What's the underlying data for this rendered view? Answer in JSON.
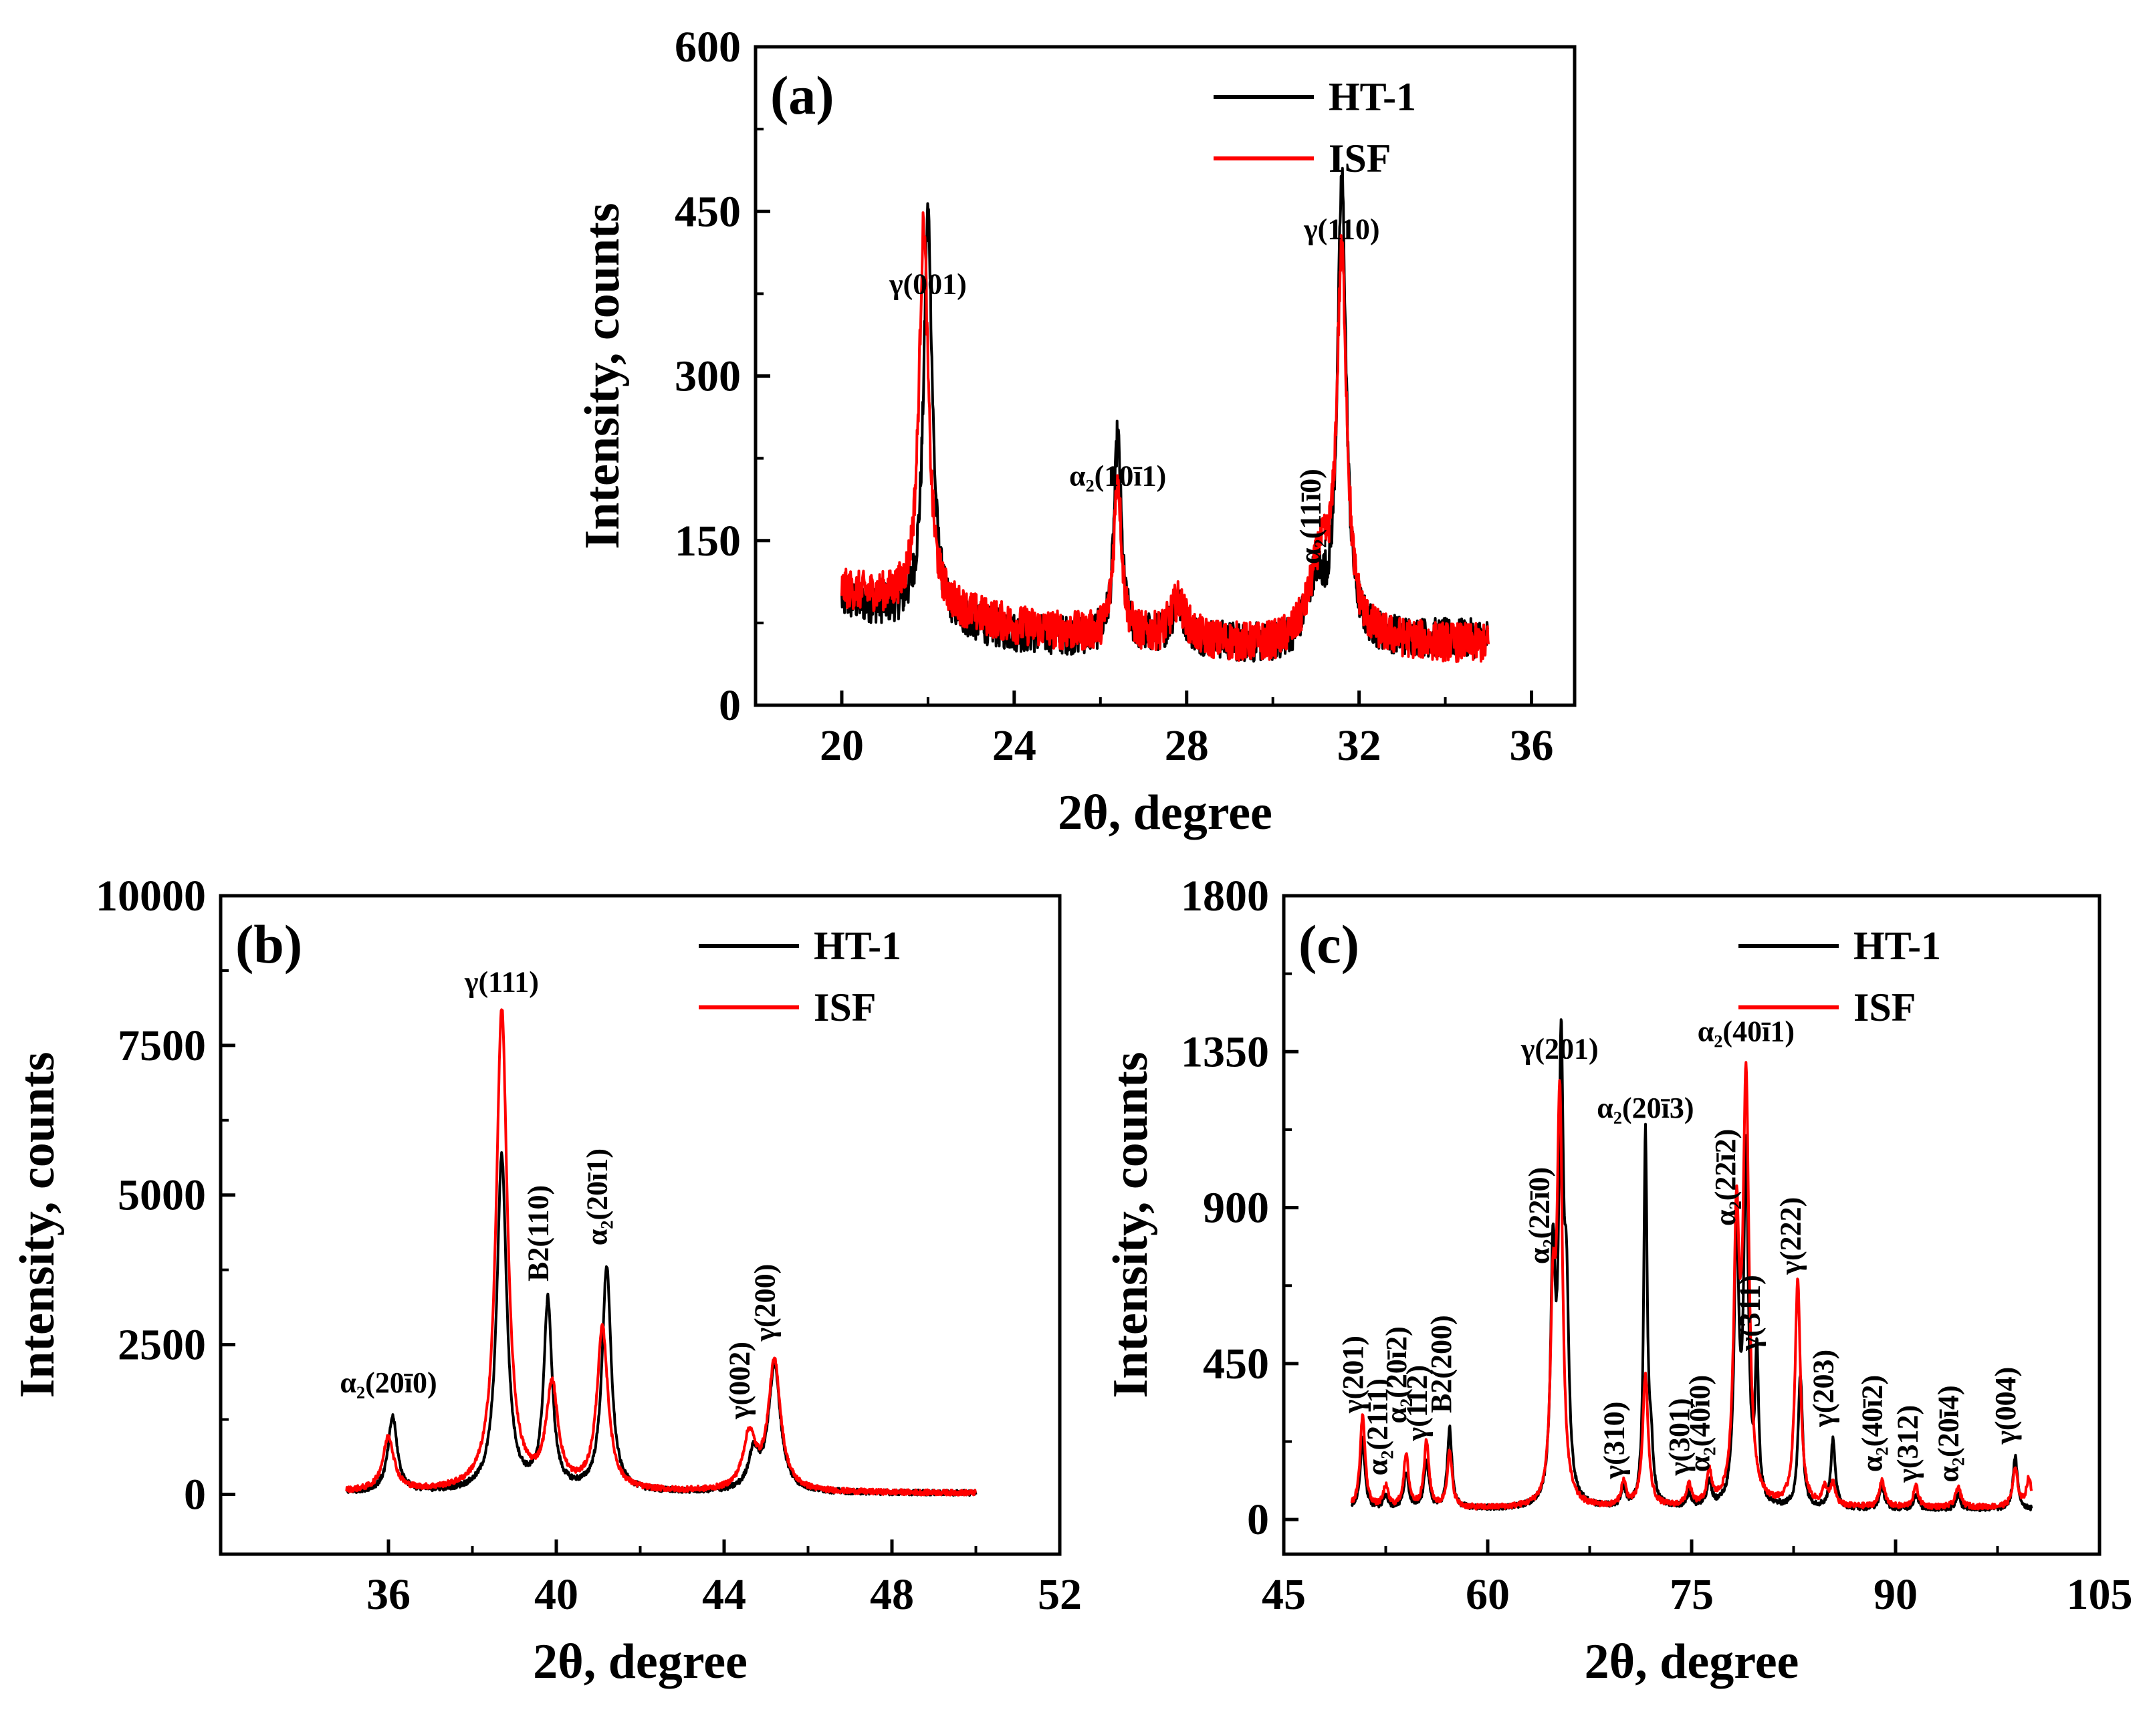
{
  "colors": {
    "HT-1": "#000000",
    "ISF": "#ff0000"
  },
  "chart_data": [
    {
      "type": "line",
      "panel_label": "(a)",
      "xlabel": "2θ, degree",
      "ylabel": "Intensity, counts",
      "xlim": [
        18,
        37
      ],
      "ylim": [
        0,
        600
      ],
      "xticks": [
        20,
        24,
        28,
        32,
        36
      ],
      "yticks": [
        0,
        150,
        300,
        450,
        600
      ],
      "x_range": [
        20,
        35
      ],
      "grid": false,
      "legend_position": "top-right",
      "legend": [
        "HT-1",
        "ISF"
      ],
      "series": [
        {
          "name": "HT-1",
          "color": "#000000",
          "baseline": [
            [
              20,
              95
            ],
            [
              22,
              80
            ],
            [
              24,
              65
            ],
            [
              26,
              60
            ],
            [
              28,
              60
            ],
            [
              30,
              52
            ],
            [
              32,
              60
            ],
            [
              35,
              60
            ]
          ],
          "peaks": [
            [
              22.0,
              370,
              0.12
            ],
            [
              26.4,
              185,
              0.1
            ],
            [
              27.8,
              30,
              0.2
            ],
            [
              31.0,
              55,
              0.25
            ],
            [
              31.6,
              415,
              0.12
            ]
          ]
        },
        {
          "name": "ISF",
          "color": "#ff0000",
          "baseline": [
            [
              20,
              105
            ],
            [
              22,
              90
            ],
            [
              24,
              72
            ],
            [
              26,
              62
            ],
            [
              28,
              58
            ],
            [
              30,
              52
            ],
            [
              32,
              58
            ],
            [
              35,
              55
            ]
          ],
          "peaks": [
            [
              21.9,
              345,
              0.13
            ],
            [
              26.4,
              145,
              0.11
            ],
            [
              27.8,
              35,
              0.22
            ],
            [
              31.1,
              70,
              0.3
            ],
            [
              31.6,
              340,
              0.14
            ]
          ]
        }
      ],
      "annotations": [
        {
          "text": "γ(001)",
          "x": 22.0,
          "y": 375
        },
        {
          "text": "α₂(10ī1)",
          "x": 26.4,
          "y": 200
        },
        {
          "text": "γ(110)",
          "x": 31.6,
          "y": 425
        },
        {
          "text": "α₂(11ī0)",
          "x": 31.1,
          "y": 120,
          "rotate": true
        }
      ]
    },
    {
      "type": "line",
      "panel_label": "(b)",
      "xlabel": "2θ, degree",
      "ylabel": "Intensity, counts",
      "xlim": [
        32,
        52
      ],
      "ylim": [
        -1000,
        10000
      ],
      "xticks": [
        36,
        40,
        44,
        48,
        52
      ],
      "yticks": [
        0,
        2500,
        5000,
        7500,
        10000
      ],
      "x_range": [
        35,
        50
      ],
      "grid": false,
      "legend_position": "top-right",
      "legend": [
        "HT-1",
        "ISF"
      ],
      "series": [
        {
          "name": "HT-1",
          "color": "#000000",
          "baseline": [
            [
              35,
              30
            ],
            [
              50,
              20
            ]
          ],
          "peaks": [
            [
              36.1,
              1250,
              0.13
            ],
            [
              38.7,
              5600,
              0.14
            ],
            [
              39.8,
              3150,
              0.12
            ],
            [
              41.2,
              3750,
              0.13
            ],
            [
              44.7,
              600,
              0.15
            ],
            [
              45.2,
              2100,
              0.17
            ]
          ]
        },
        {
          "name": "ISF",
          "color": "#ff0000",
          "baseline": [
            [
              35,
              40
            ],
            [
              50,
              20
            ]
          ],
          "peaks": [
            [
              36.0,
              900,
              0.16
            ],
            [
              38.7,
              8050,
              0.16
            ],
            [
              39.9,
              1700,
              0.17
            ],
            [
              41.1,
              2700,
              0.16
            ],
            [
              44.6,
              900,
              0.18
            ],
            [
              45.2,
              2150,
              0.18
            ]
          ]
        }
      ],
      "annotations": [
        {
          "text": "α₂(20ī0)",
          "x": 36.0,
          "y": 1700
        },
        {
          "text": "γ(111)",
          "x": 38.7,
          "y": 8400
        },
        {
          "text": "B2(110)",
          "x": 39.8,
          "y": 3400,
          "rotate": true
        },
        {
          "text": "α₂(20ī1)",
          "x": 41.2,
          "y": 4000,
          "rotate": true
        },
        {
          "text": "γ(002)",
          "x": 44.6,
          "y": 1100,
          "rotate": true
        },
        {
          "text": "γ(200)",
          "x": 45.2,
          "y": 2400,
          "rotate": true
        }
      ]
    },
    {
      "type": "line",
      "panel_label": "(c)",
      "xlabel": "2θ, degree",
      "ylabel": "Intensity, counts",
      "xlim": [
        45,
        105
      ],
      "ylim": [
        -100,
        1800
      ],
      "xticks": [
        45,
        60,
        75,
        90,
        105
      ],
      "yticks": [
        0,
        450,
        900,
        1350,
        1800
      ],
      "x_range": [
        50,
        100
      ],
      "grid": false,
      "legend_position": "top-right",
      "legend": [
        "HT-1",
        "ISF"
      ],
      "series": [
        {
          "name": "HT-1",
          "color": "#000000",
          "baseline": [
            [
              50,
              30
            ],
            [
              100,
              30
            ]
          ],
          "peaks": [
            [
              50.8,
              200,
              0.2
            ],
            [
              52.5,
              40,
              0.2
            ],
            [
              54.0,
              100,
              0.2
            ],
            [
              55.5,
              140,
              0.2
            ],
            [
              57.2,
              230,
              0.2
            ],
            [
              64.8,
              680,
              0.2
            ],
            [
              65.4,
              1250,
              0.2
            ],
            [
              65.8,
              500,
              0.2
            ],
            [
              70.0,
              50,
              0.2
            ],
            [
              71.6,
              1070,
              0.15
            ],
            [
              72.0,
              150,
              0.2
            ],
            [
              74.8,
              40,
              0.2
            ],
            [
              76.3,
              70,
              0.2
            ],
            [
              78.3,
              790,
              0.2
            ],
            [
              79.0,
              1000,
              0.2
            ],
            [
              79.8,
              420,
              0.15
            ],
            [
              83.0,
              380,
              0.2
            ],
            [
              85.4,
              200,
              0.2
            ],
            [
              89.0,
              70,
              0.2
            ],
            [
              91.5,
              40,
              0.2
            ],
            [
              94.6,
              40,
              0.2
            ],
            [
              98.8,
              150,
              0.2
            ]
          ]
        },
        {
          "name": "ISF",
          "color": "#ff0000",
          "baseline": [
            [
              50,
              30
            ],
            [
              100,
              35
            ]
          ],
          "peaks": [
            [
              50.8,
              270,
              0.22
            ],
            [
              52.5,
              60,
              0.22
            ],
            [
              54.0,
              150,
              0.22
            ],
            [
              55.5,
              190,
              0.22
            ],
            [
              57.2,
              160,
              0.22
            ],
            [
              64.8,
              520,
              0.22
            ],
            [
              65.3,
              1150,
              0.24
            ],
            [
              70.0,
              70,
              0.22
            ],
            [
              71.6,
              380,
              0.24
            ],
            [
              74.8,
              60,
              0.22
            ],
            [
              76.3,
              90,
              0.22
            ],
            [
              78.3,
              780,
              0.24
            ],
            [
              79.0,
              1200,
              0.26
            ],
            [
              82.8,
              650,
              0.24
            ],
            [
              84.8,
              50,
              0.22
            ],
            [
              85.4,
              60,
              0.22
            ],
            [
              89.0,
              80,
              0.22
            ],
            [
              91.5,
              60,
              0.22
            ],
            [
              94.6,
              60,
              0.22
            ],
            [
              98.8,
              110,
              0.22
            ],
            [
              99.8,
              80,
              0.22
            ]
          ]
        }
      ],
      "annotations": [
        {
          "text": "γ(201)",
          "x": 65.3,
          "y": 1330
        },
        {
          "text": "α₂(20ī3)",
          "x": 71.6,
          "y": 1160
        },
        {
          "text": "α₂(40ī1)",
          "x": 79.0,
          "y": 1380
        },
        {
          "text": "γ(201)",
          "x": 50.8,
          "y": 280,
          "rotate": true
        },
        {
          "text": "α₂(21ī1)",
          "x": 52.6,
          "y": 100,
          "rotate": true
        },
        {
          "text": "α₂(20ī2)",
          "x": 54.0,
          "y": 250,
          "rotate": true
        },
        {
          "text": "γ(112)",
          "x": 55.5,
          "y": 200,
          "rotate": true
        },
        {
          "text": "B2(200)",
          "x": 57.3,
          "y": 280,
          "rotate": true
        },
        {
          "text": "α₂(22ī0)",
          "x": 64.5,
          "y": 710,
          "rotate": true
        },
        {
          "text": "γ(310)",
          "x": 70.0,
          "y": 90,
          "rotate": true
        },
        {
          "text": "γ(301)",
          "x": 74.8,
          "y": 100,
          "rotate": true
        },
        {
          "text": "α₂(40ī0)",
          "x": 76.3,
          "y": 110,
          "rotate": true
        },
        {
          "text": "α₂(22ī2)",
          "x": 78.2,
          "y": 820,
          "rotate": true
        },
        {
          "text": "γ(311)",
          "x": 80.0,
          "y": 460,
          "rotate": true
        },
        {
          "text": "γ(222)",
          "x": 83.0,
          "y": 680,
          "rotate": true
        },
        {
          "text": "γ(203)",
          "x": 85.4,
          "y": 240,
          "rotate": true
        },
        {
          "text": "α₂(40ī2)",
          "x": 89.0,
          "y": 110,
          "rotate": true
        },
        {
          "text": "γ(312)",
          "x": 91.6,
          "y": 80,
          "rotate": true
        },
        {
          "text": "α₂(20ī4)",
          "x": 94.6,
          "y": 80,
          "rotate": true
        },
        {
          "text": "γ(004)",
          "x": 98.8,
          "y": 190,
          "rotate": true
        }
      ]
    }
  ]
}
